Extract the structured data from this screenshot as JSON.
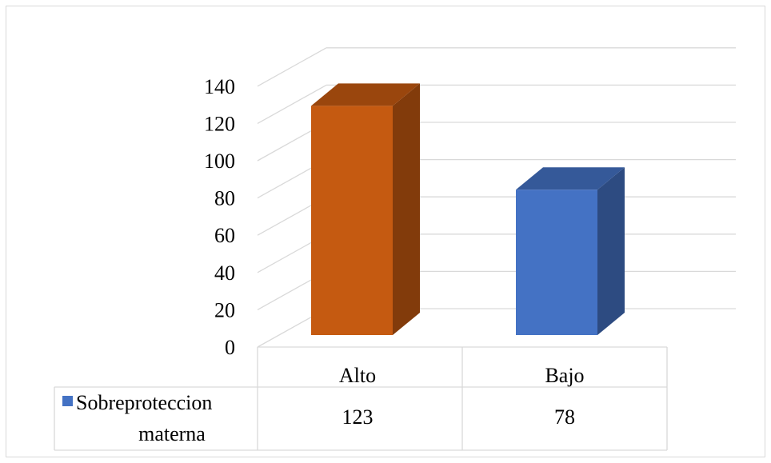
{
  "chart_data": {
    "type": "bar",
    "categories": [
      "Alto",
      "Bajo"
    ],
    "series": [
      {
        "name": "Sobreproteccion materna",
        "values": [
          123,
          78
        ],
        "colors": [
          "#C55A11",
          "#4472C4"
        ]
      }
    ],
    "ylim": [
      0,
      140
    ],
    "yticks": [
      "0",
      "20",
      "40",
      "60",
      "80",
      "100",
      "120",
      "140"
    ],
    "grid": true,
    "legend": "data-table",
    "table": {
      "legend_label_line1": "Sobreproteccion",
      "legend_label_line2": "materna",
      "values": [
        "123",
        "78"
      ]
    }
  }
}
